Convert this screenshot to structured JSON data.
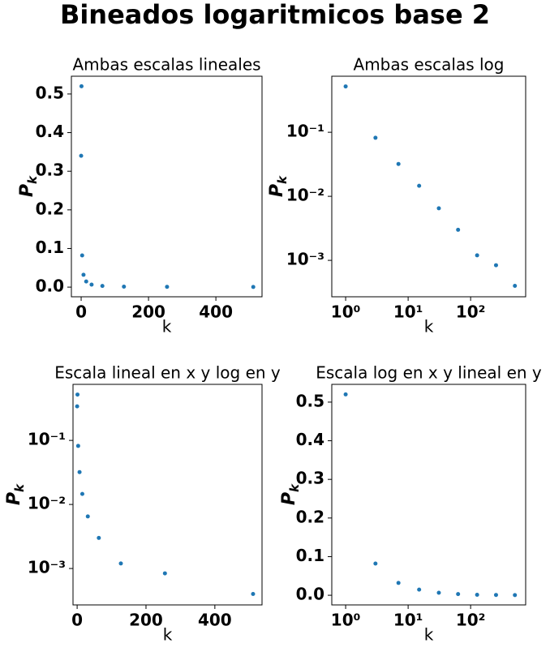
{
  "title": "Bineados logaritmicos base 2",
  "chart_data": [
    {
      "type": "scatter",
      "title": "Ambas escalas lineales",
      "xlabel": "k",
      "ylabel": {
        "base": "P",
        "sub": "k"
      },
      "xscale": "linear",
      "yscale": "linear",
      "color": "#1f77b4",
      "x": [
        0,
        1,
        3,
        7,
        15,
        31,
        63,
        127,
        255,
        511
      ],
      "y": [
        0.34,
        0.52,
        0.082,
        0.032,
        0.0146,
        0.0065,
        0.003,
        0.0012,
        0.00084,
        0.0004
      ],
      "xlim": [
        -29,
        537
      ],
      "ylim": [
        -0.025,
        0.546
      ],
      "xticks": [
        0,
        200,
        400
      ],
      "yticks": [
        {
          "value": 0,
          "label": "0.0"
        },
        0.1,
        0.2,
        0.3,
        0.4,
        0.5
      ]
    },
    {
      "type": "scatter",
      "title": "Ambas escalas log",
      "xlabel": "k",
      "ylabel": {
        "base": "P",
        "sub": "k"
      },
      "xscale": "log",
      "yscale": "log",
      "color": "#1f77b4",
      "x": [
        1,
        3,
        7,
        15,
        31,
        63,
        127,
        255,
        511
      ],
      "y": [
        0.52,
        0.082,
        0.032,
        0.0146,
        0.0065,
        0.003,
        0.0012,
        0.00084,
        0.0004
      ],
      "xlim": [
        0.6,
        760
      ],
      "ylim": [
        0.00027,
        0.75
      ],
      "xticks": [
        {
          "value": 1,
          "label": "10⁰"
        },
        {
          "value": 10,
          "label": "10¹"
        },
        {
          "value": 100,
          "label": "10²"
        }
      ],
      "yticks": [
        {
          "value": 0.001,
          "label": "10⁻³"
        },
        {
          "value": 0.01,
          "label": "10⁻²"
        },
        {
          "value": 0.1,
          "label": "10⁻¹"
        }
      ]
    },
    {
      "type": "scatter",
      "title": "Escala lineal en x y log en y",
      "xlabel": "k",
      "ylabel": {
        "base": "P",
        "sub": "k"
      },
      "xscale": "linear",
      "yscale": "log",
      "color": "#1f77b4",
      "x": [
        0,
        1,
        3,
        7,
        15,
        31,
        63,
        127,
        255,
        511
      ],
      "y": [
        0.34,
        0.52,
        0.082,
        0.032,
        0.0146,
        0.0065,
        0.003,
        0.0012,
        0.00084,
        0.0004
      ],
      "xlim": [
        -12,
        537
      ],
      "ylim": [
        0.00027,
        0.75
      ],
      "xticks": [
        0,
        200,
        400
      ],
      "yticks": [
        {
          "value": 0.001,
          "label": "10⁻³"
        },
        {
          "value": 0.01,
          "label": "10⁻²"
        },
        {
          "value": 0.1,
          "label": "10⁻¹"
        }
      ]
    },
    {
      "type": "scatter",
      "title": "Escala log en x y lineal en y",
      "xlabel": "k",
      "ylabel": {
        "base": "P",
        "sub": "k"
      },
      "xscale": "log",
      "yscale": "linear",
      "color": "#1f77b4",
      "x": [
        1,
        3,
        7,
        15,
        31,
        63,
        127,
        255,
        511
      ],
      "y": [
        0.52,
        0.082,
        0.032,
        0.0146,
        0.0065,
        0.003,
        0.0012,
        0.00084,
        0.0004
      ],
      "xlim": [
        0.6,
        760
      ],
      "ylim": [
        -0.025,
        0.546
      ],
      "xticks": [
        {
          "value": 1,
          "label": "10⁰"
        },
        {
          "value": 10,
          "label": "10¹"
        },
        {
          "value": 100,
          "label": "10²"
        }
      ],
      "yticks": [
        {
          "value": 0,
          "label": "0.0"
        },
        0.1,
        0.2,
        0.3,
        0.4,
        0.5
      ]
    }
  ]
}
